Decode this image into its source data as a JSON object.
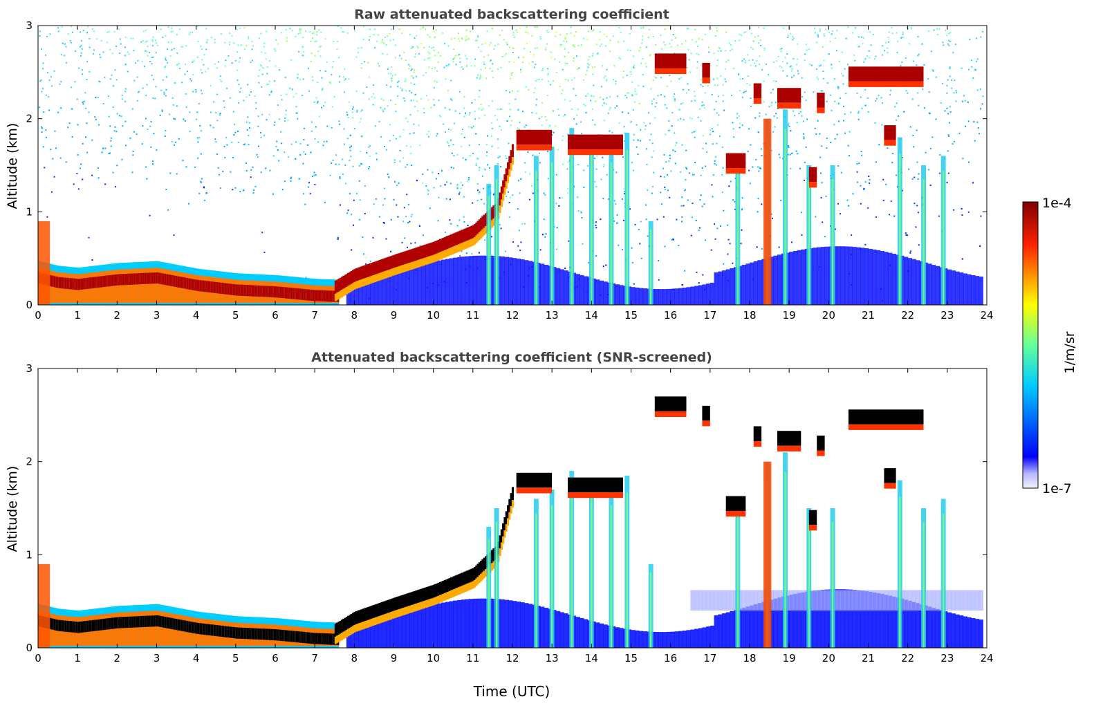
{
  "chart_data": [
    {
      "type": "heatmap",
      "title": "Raw attenuated backscattering coefficient",
      "xlabel": "",
      "ylabel": "Altitude (km)",
      "xlim": [
        0,
        24
      ],
      "ylim": [
        0,
        3
      ],
      "x_ticks": [
        "0",
        "1",
        "2",
        "3",
        "4",
        "5",
        "6",
        "7",
        "8",
        "9",
        "10",
        "11",
        "12",
        "13",
        "14",
        "15",
        "16",
        "17",
        "18",
        "19",
        "20",
        "21",
        "22",
        "23",
        "24"
      ],
      "y_ticks": [
        "0",
        "1",
        "2",
        "3"
      ],
      "screened": false
    },
    {
      "type": "heatmap",
      "title": "Attenuated backscattering coefficient (SNR-screened)",
      "xlabel": "Time (UTC)",
      "ylabel": "Altitude (km)",
      "xlim": [
        0,
        24
      ],
      "ylim": [
        0,
        3
      ],
      "x_ticks": [
        "0",
        "1",
        "2",
        "3",
        "4",
        "5",
        "6",
        "7",
        "8",
        "9",
        "10",
        "11",
        "12",
        "13",
        "14",
        "15",
        "16",
        "17",
        "18",
        "19",
        "20",
        "21",
        "22",
        "23",
        "24"
      ],
      "y_ticks": [
        "0",
        "1",
        "2",
        "3"
      ],
      "screened": true
    }
  ],
  "colorbar": {
    "label": "1/m/sr",
    "max_label": "1e-4",
    "min_label": "1e-7",
    "scale": "log",
    "range": [
      1e-07,
      0.0001
    ],
    "colormap": "jet"
  },
  "layers": {
    "boundary_layer": [
      [
        0,
        0.35
      ],
      [
        0.5,
        0.3
      ],
      [
        1,
        0.28
      ],
      [
        2,
        0.33
      ],
      [
        3,
        0.35
      ],
      [
        4,
        0.27
      ],
      [
        5,
        0.22
      ],
      [
        6,
        0.2
      ],
      [
        7,
        0.16
      ],
      [
        7.6,
        0.15
      ]
    ],
    "rising_layer": [
      [
        7.5,
        0.2
      ],
      [
        8,
        0.33
      ],
      [
        9,
        0.48
      ],
      [
        10,
        0.62
      ],
      [
        11,
        0.8
      ],
      [
        11.6,
        1.05
      ],
      [
        12,
        1.7
      ]
    ],
    "cloud_segments": [
      {
        "x0": 12.1,
        "x1": 13.0,
        "y": 1.8
      },
      {
        "x0": 13.4,
        "x1": 14.8,
        "y": 1.75
      },
      {
        "x0": 15.6,
        "x1": 16.4,
        "y": 2.62
      },
      {
        "x0": 16.8,
        "x1": 17.0,
        "y": 2.52
      },
      {
        "x0": 17.4,
        "x1": 17.9,
        "y": 1.55
      },
      {
        "x0": 18.1,
        "x1": 18.3,
        "y": 2.3
      },
      {
        "x0": 18.7,
        "x1": 19.3,
        "y": 2.25
      },
      {
        "x0": 19.5,
        "x1": 19.7,
        "y": 1.4
      },
      {
        "x0": 19.7,
        "x1": 19.9,
        "y": 2.2
      },
      {
        "x0": 20.5,
        "x1": 22.4,
        "y": 2.48
      },
      {
        "x0": 21.4,
        "x1": 21.7,
        "y": 1.85
      }
    ],
    "plumes": [
      {
        "x": 11.4,
        "top": 1.3
      },
      {
        "x": 11.6,
        "top": 1.5
      },
      {
        "x": 12.6,
        "top": 1.6
      },
      {
        "x": 13.0,
        "top": 1.7
      },
      {
        "x": 13.5,
        "top": 1.9
      },
      {
        "x": 14.0,
        "top": 1.8
      },
      {
        "x": 14.5,
        "top": 1.7
      },
      {
        "x": 14.9,
        "top": 1.85
      },
      {
        "x": 15.5,
        "top": 0.9
      },
      {
        "x": 17.7,
        "top": 1.6
      },
      {
        "x": 18.45,
        "top": 2.0
      },
      {
        "x": 18.9,
        "top": 2.1
      },
      {
        "x": 19.5,
        "top": 1.5
      },
      {
        "x": 20.1,
        "top": 1.5
      },
      {
        "x": 21.8,
        "top": 1.8
      },
      {
        "x": 22.4,
        "top": 1.5
      },
      {
        "x": 22.9,
        "top": 1.6
      }
    ]
  }
}
